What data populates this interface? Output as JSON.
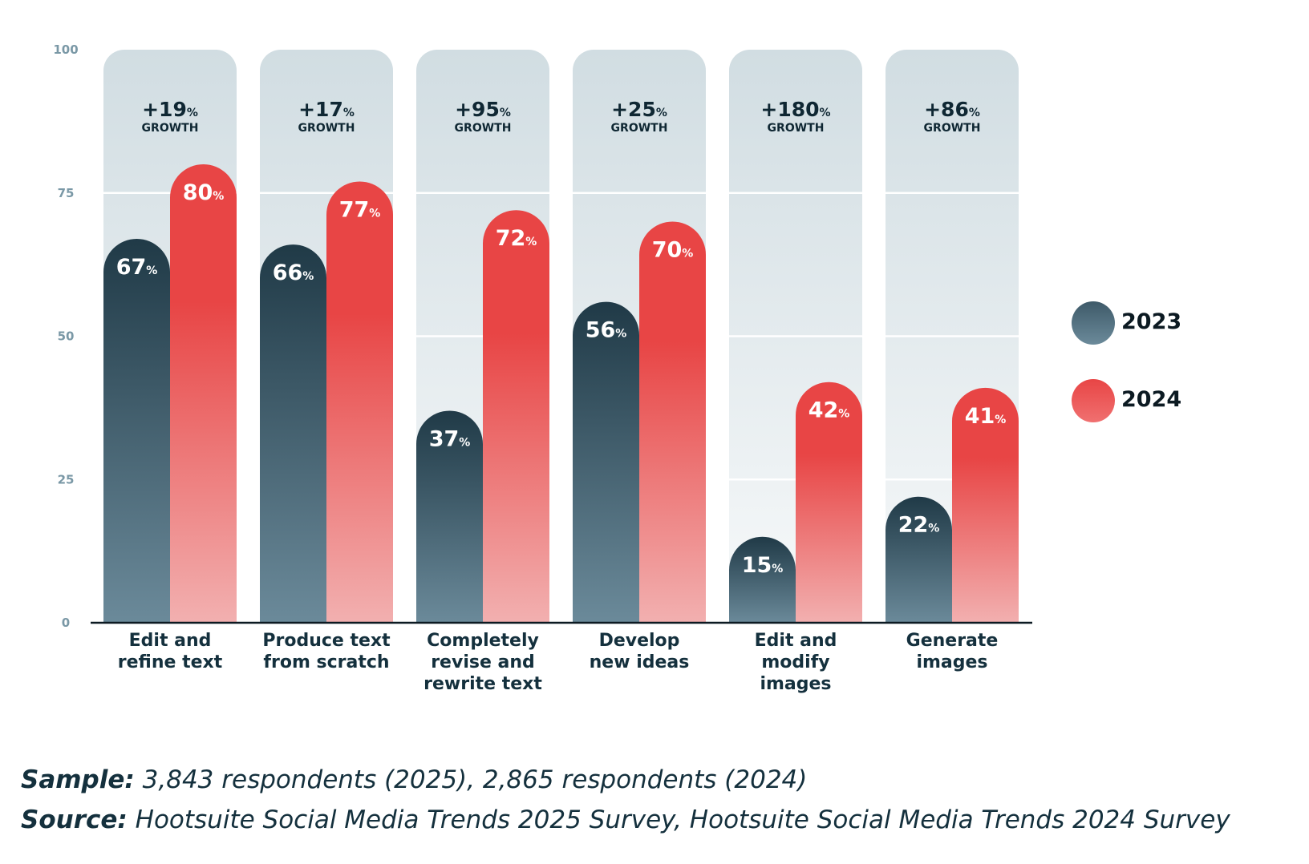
{
  "chart_data": {
    "type": "bar",
    "categories": [
      "Edit and refine text",
      "Produce text from scratch",
      "Completely revise and rewrite text",
      "Develop new ideas",
      "Edit and modify images",
      "Generate images"
    ],
    "category_lines": [
      [
        "Edit and",
        "refine text"
      ],
      [
        "Produce text",
        "from scratch"
      ],
      [
        "Completely",
        "revise and",
        "rewrite text"
      ],
      [
        "Develop",
        "new ideas"
      ],
      [
        "Edit and",
        "modify",
        "images"
      ],
      [
        "Generate",
        "images"
      ]
    ],
    "series": [
      {
        "name": "2023",
        "values": [
          67,
          66,
          37,
          56,
          15,
          22
        ],
        "color": "#2b4554"
      },
      {
        "name": "2024",
        "values": [
          80,
          77,
          72,
          70,
          42,
          41
        ],
        "color": "#e84545"
      }
    ],
    "growth": [
      "+19",
      "+17",
      "+95",
      "+25",
      "+180",
      "+86"
    ],
    "growth_suffix": "%",
    "growth_label": "GROWTH",
    "value_suffix": "%",
    "y_ticks": [
      0,
      25,
      50,
      75,
      100
    ],
    "ylim": [
      0,
      100
    ],
    "grid": true,
    "legend_position": "right"
  },
  "footer": {
    "sample_label": "Sample:",
    "sample_text": " 3,843 respondents (2025), 2,865 respondents (2024)",
    "source_label": "Source:",
    "source_text": " Hootsuite Social Media Trends 2025 Survey, Hootsuite Social Media Trends 2024 Survey"
  }
}
